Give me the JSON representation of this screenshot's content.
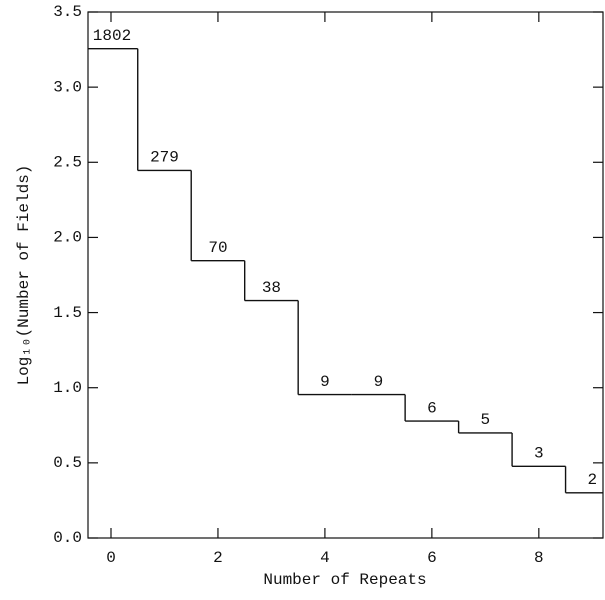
{
  "chart_data": {
    "type": "step",
    "xlabel": "Number of Repeats",
    "ylabel": "Log₁₀(Number of Fields)",
    "x": [
      0,
      1,
      2,
      3,
      4,
      5,
      6,
      7,
      8,
      9
    ],
    "values": [
      3.2558,
      2.4456,
      1.8451,
      1.5798,
      0.9542,
      0.9542,
      0.7782,
      0.699,
      0.4771,
      0.301
    ],
    "value_labels": [
      "1802",
      "279",
      "70",
      "38",
      "9",
      "9",
      "6",
      "5",
      "3",
      "2"
    ],
    "color": "#111111",
    "xlim": [
      -0.43,
      9.2
    ],
    "ylim": [
      0,
      3.5
    ],
    "xticks": [
      0,
      2,
      4,
      6,
      8
    ],
    "yticks": [
      {
        "value": 0,
        "label": "0.0"
      },
      0.5,
      {
        "value": 1,
        "label": "1.0"
      },
      1.5,
      {
        "value": 2,
        "label": "2.0"
      },
      2.5,
      {
        "value": 3,
        "label": "3.0"
      },
      3.5
    ]
  }
}
